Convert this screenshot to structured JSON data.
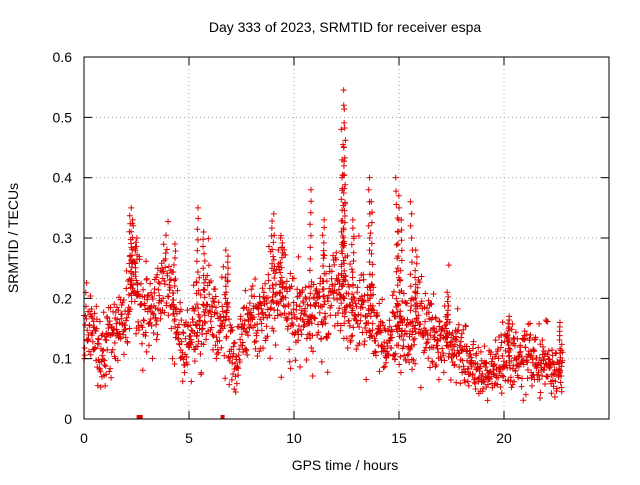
{
  "chart_data": {
    "type": "scatter",
    "title": "Day 333 of 2023, SRMTID for receiver espa",
    "xlabel": "GPS time / hours",
    "ylabel": "SRMTID / TECUs",
    "xlim": [
      0,
      25
    ],
    "ylim": [
      0,
      0.6
    ],
    "xticks": [
      0,
      5,
      10,
      15,
      20
    ],
    "xtick_labels": [
      "0",
      "5",
      "10",
      "15",
      "20"
    ],
    "yticks": [
      0,
      0.1,
      0.2,
      0.3,
      0.4,
      0.5,
      0.6
    ],
    "ytick_labels": [
      "0",
      "0.1",
      "0.2",
      "0.3",
      "0.4",
      "0.5",
      "0.6"
    ],
    "grid": true,
    "marker": "+",
    "color": "#e00000",
    "series": [
      {
        "name": "SRMTID",
        "trend": [
          [
            0.0,
            0.16
          ],
          [
            0.5,
            0.15
          ],
          [
            0.8,
            0.1
          ],
          [
            1.2,
            0.13
          ],
          [
            1.6,
            0.15
          ],
          [
            2.0,
            0.17
          ],
          [
            2.4,
            0.24
          ],
          [
            2.8,
            0.17
          ],
          [
            3.2,
            0.18
          ],
          [
            3.6,
            0.21
          ],
          [
            4.0,
            0.23
          ],
          [
            4.4,
            0.14
          ],
          [
            4.8,
            0.13
          ],
          [
            5.2,
            0.14
          ],
          [
            5.6,
            0.17
          ],
          [
            6.0,
            0.2
          ],
          [
            6.4,
            0.15
          ],
          [
            6.8,
            0.17
          ],
          [
            7.2,
            0.09
          ],
          [
            7.6,
            0.14
          ],
          [
            8.0,
            0.17
          ],
          [
            8.4,
            0.18
          ],
          [
            8.8,
            0.2
          ],
          [
            9.2,
            0.22
          ],
          [
            9.6,
            0.2
          ],
          [
            10.0,
            0.17
          ],
          [
            10.4,
            0.18
          ],
          [
            10.8,
            0.17
          ],
          [
            11.2,
            0.18
          ],
          [
            11.6,
            0.2
          ],
          [
            12.0,
            0.21
          ],
          [
            12.4,
            0.2
          ],
          [
            12.8,
            0.18
          ],
          [
            13.2,
            0.19
          ],
          [
            13.6,
            0.18
          ],
          [
            14.0,
            0.14
          ],
          [
            14.4,
            0.12
          ],
          [
            14.8,
            0.16
          ],
          [
            15.2,
            0.14
          ],
          [
            15.6,
            0.14
          ],
          [
            16.0,
            0.17
          ],
          [
            16.4,
            0.15
          ],
          [
            16.8,
            0.14
          ],
          [
            17.2,
            0.13
          ],
          [
            17.6,
            0.12
          ],
          [
            18.0,
            0.11
          ],
          [
            18.4,
            0.09
          ],
          [
            18.8,
            0.08
          ],
          [
            19.2,
            0.07
          ],
          [
            19.6,
            0.09
          ],
          [
            20.0,
            0.1
          ],
          [
            20.4,
            0.11
          ],
          [
            20.8,
            0.09
          ],
          [
            21.2,
            0.1
          ],
          [
            21.6,
            0.09
          ],
          [
            22.0,
            0.09
          ],
          [
            22.4,
            0.08
          ],
          [
            22.8,
            0.08
          ]
        ],
        "spikes": [
          [
            2.2,
            0.35
          ],
          [
            2.3,
            0.33
          ],
          [
            2.5,
            0.3
          ],
          [
            4.3,
            0.29
          ],
          [
            5.4,
            0.35
          ],
          [
            5.7,
            0.31
          ],
          [
            6.8,
            0.28
          ],
          [
            9.0,
            0.34
          ],
          [
            9.4,
            0.3
          ],
          [
            10.8,
            0.38
          ],
          [
            11.4,
            0.33
          ],
          [
            12.4,
            0.545
          ],
          [
            12.4,
            0.52
          ],
          [
            12.3,
            0.48
          ],
          [
            12.4,
            0.45
          ],
          [
            12.3,
            0.4
          ],
          [
            12.8,
            0.33
          ],
          [
            13.6,
            0.4
          ],
          [
            13.7,
            0.36
          ],
          [
            14.9,
            0.4
          ],
          [
            15.0,
            0.37
          ],
          [
            15.1,
            0.33
          ],
          [
            15.6,
            0.36
          ],
          [
            15.8,
            0.28
          ],
          [
            17.3,
            0.21
          ],
          [
            20.2,
            0.17
          ],
          [
            22.7,
            0.16
          ]
        ],
        "isolated": [
          [
            2.6,
            0.0
          ],
          [
            2.7,
            0.0
          ],
          [
            6.6,
            0.0
          ]
        ]
      }
    ]
  }
}
